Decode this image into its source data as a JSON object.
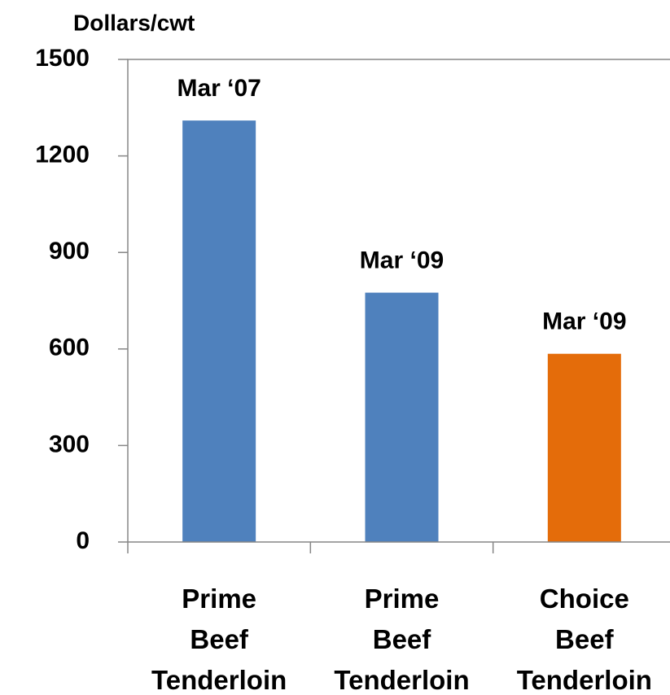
{
  "chart_data": {
    "type": "bar",
    "y_label": "Dollars/cwt",
    "categories": [
      "Prime Beef Tenderloin",
      "Prime Beef Tenderloin",
      "Choice Beef Tenderloin"
    ],
    "values": [
      1310,
      775,
      585
    ],
    "annotations": [
      "Mar ‘07",
      "Mar ‘09",
      "Mar ‘09"
    ],
    "colors": [
      "#4f81bd",
      "#4f81bd",
      "#e46c0a"
    ],
    "ylim": [
      0,
      1500
    ],
    "yticks": [
      0,
      300,
      600,
      900,
      1200,
      1500
    ],
    "grid": false
  }
}
